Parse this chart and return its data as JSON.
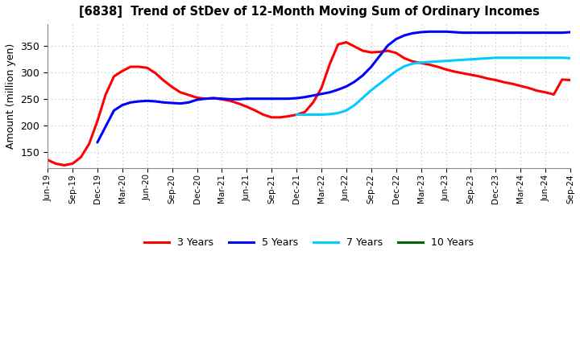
{
  "title": "[6838]  Trend of StDev of 12-Month Moving Sum of Ordinary Incomes",
  "ylabel": "Amount (million yen)",
  "ylim": [
    120,
    390
  ],
  "yticks": [
    150,
    200,
    250,
    300,
    350
  ],
  "background_color": "#ffffff",
  "grid_color": "#bbbbbb",
  "series": {
    "3 Years": {
      "color": "#ff0000",
      "x": [
        0,
        1,
        2,
        3,
        4,
        5,
        6,
        7,
        8,
        9,
        10,
        11,
        12,
        13,
        14,
        15,
        16,
        17,
        18,
        19,
        20,
        21,
        22,
        23,
        24,
        25,
        26,
        27,
        28,
        29,
        30,
        31,
        32,
        33,
        34,
        35,
        36,
        37,
        38,
        39,
        40,
        41,
        42,
        43,
        44,
        45,
        46,
        47,
        48,
        49,
        50,
        51,
        52,
        53,
        54,
        55,
        56,
        57,
        58,
        59,
        60,
        61,
        62,
        63
      ],
      "y": [
        135,
        128,
        125,
        128,
        140,
        165,
        208,
        258,
        292,
        302,
        310,
        310,
        308,
        298,
        284,
        272,
        262,
        257,
        252,
        250,
        251,
        249,
        246,
        241,
        235,
        228,
        220,
        215,
        215,
        217,
        220,
        225,
        243,
        270,
        315,
        352,
        356,
        348,
        340,
        337,
        338,
        340,
        336,
        326,
        320,
        317,
        314,
        310,
        305,
        301,
        298,
        295,
        292,
        288,
        285,
        281,
        278,
        274,
        270,
        265,
        262,
        258,
        286,
        285
      ]
    },
    "5 Years": {
      "color": "#0000ff",
      "x": [
        6,
        7,
        8,
        9,
        10,
        11,
        12,
        13,
        14,
        15,
        16,
        17,
        18,
        19,
        20,
        21,
        22,
        23,
        24,
        25,
        26,
        27,
        28,
        29,
        30,
        31,
        32,
        33,
        34,
        35,
        36,
        37,
        38,
        39,
        40,
        41,
        42,
        43,
        44,
        45,
        46,
        47,
        48,
        49,
        50,
        51,
        52,
        53,
        54,
        55,
        56,
        57,
        58,
        59,
        60,
        61,
        62,
        63
      ],
      "y": [
        168,
        198,
        228,
        238,
        243,
        245,
        246,
        245,
        243,
        242,
        241,
        243,
        248,
        250,
        251,
        250,
        249,
        249,
        250,
        250,
        250,
        250,
        250,
        250,
        251,
        253,
        256,
        259,
        262,
        267,
        273,
        282,
        294,
        310,
        330,
        350,
        362,
        369,
        373,
        375,
        376,
        376,
        376,
        375,
        374,
        374,
        374,
        374,
        374,
        374,
        374,
        374,
        374,
        374,
        374,
        374,
        374,
        375
      ]
    },
    "7 Years": {
      "color": "#00ccff",
      "x": [
        30,
        31,
        32,
        33,
        34,
        35,
        36,
        37,
        38,
        39,
        40,
        41,
        42,
        43,
        44,
        45,
        46,
        47,
        48,
        49,
        50,
        51,
        52,
        53,
        54,
        55,
        56,
        57,
        58,
        59,
        60,
        61,
        62,
        63
      ],
      "y": [
        220,
        220,
        220,
        220,
        221,
        223,
        228,
        238,
        252,
        266,
        278,
        290,
        302,
        311,
        316,
        318,
        319,
        320,
        321,
        322,
        323,
        324,
        325,
        326,
        327,
        327,
        327,
        327,
        327,
        327,
        327,
        327,
        327,
        326
      ]
    },
    "10 Years": {
      "color": "#006600",
      "x": [],
      "y": []
    }
  },
  "xtick_labels": [
    "Jun-19",
    "Sep-19",
    "Dec-19",
    "Mar-20",
    "Jun-20",
    "Sep-20",
    "Dec-20",
    "Mar-21",
    "Jun-21",
    "Sep-21",
    "Dec-21",
    "Mar-22",
    "Jun-22",
    "Sep-22",
    "Dec-22",
    "Mar-23",
    "Jun-23",
    "Sep-23",
    "Dec-23",
    "Mar-24",
    "Jun-24",
    "Sep-24"
  ],
  "xtick_positions": [
    0,
    3,
    6,
    9,
    12,
    15,
    18,
    21,
    24,
    27,
    30,
    33,
    36,
    39,
    42,
    45,
    48,
    51,
    54,
    57,
    60,
    63
  ],
  "legend_order": [
    "3 Years",
    "5 Years",
    "7 Years",
    "10 Years"
  ],
  "linewidth": 2.2
}
